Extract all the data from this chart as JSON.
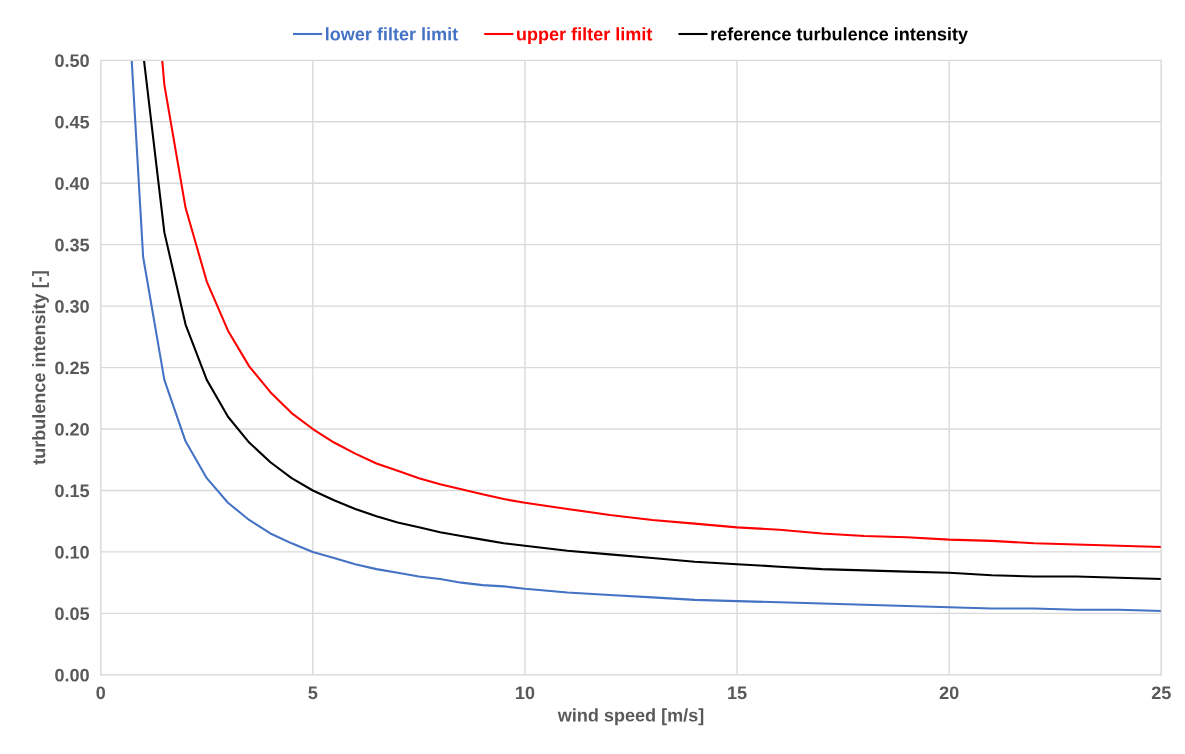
{
  "chart_data": {
    "type": "line",
    "xlabel": "wind speed [m/s]",
    "ylabel": "turbulence intensity [-]",
    "xlim": [
      0,
      25
    ],
    "xticks": [
      0,
      5,
      10,
      15,
      20,
      25
    ],
    "ylim": [
      0,
      0.5
    ],
    "yticks": [
      {
        "value": 0,
        "label": "0.00"
      },
      {
        "value": 0.05,
        "label": "0.05"
      },
      {
        "value": 0.1,
        "label": "0.10"
      },
      {
        "value": 0.15,
        "label": "0.15"
      },
      {
        "value": 0.2,
        "label": "0.20"
      },
      {
        "value": 0.25,
        "label": "0.25"
      },
      {
        "value": 0.3,
        "label": "0.30"
      },
      {
        "value": 0.35,
        "label": "0.35"
      },
      {
        "value": 0.4,
        "label": "0.40"
      },
      {
        "value": 0.45,
        "label": "0.45"
      },
      {
        "value": 0.5,
        "label": "0.50"
      }
    ],
    "grid": true,
    "legend": "top",
    "marker": "none",
    "line_style": "solid",
    "series": [
      {
        "name": "lower filter limit",
        "color": "#4472c4",
        "x": [
          0.73,
          1,
          1.5,
          2,
          2.5,
          3,
          3.5,
          4,
          4.5,
          5,
          5.5,
          6,
          6.5,
          7,
          7.5,
          8,
          8.5,
          9,
          9.5,
          10,
          11,
          12,
          13,
          14,
          15,
          16,
          17,
          18,
          19,
          20,
          21,
          22,
          23,
          24,
          25
        ],
        "values": [
          0.5,
          0.34,
          0.24,
          0.19,
          0.16,
          0.14,
          0.126,
          0.115,
          0.107,
          0.1,
          0.095,
          0.09,
          0.086,
          0.083,
          0.08,
          0.078,
          0.075,
          0.073,
          0.072,
          0.07,
          0.067,
          0.065,
          0.063,
          0.061,
          0.06,
          0.059,
          0.058,
          0.057,
          0.056,
          0.055,
          0.054,
          0.054,
          0.053,
          0.053,
          0.052
        ]
      },
      {
        "name": "upper filter limit",
        "color": "#ff0000",
        "x": [
          1.45,
          1.5,
          2,
          2.5,
          3,
          3.5,
          4,
          4.5,
          5,
          5.5,
          6,
          6.5,
          7,
          7.5,
          8,
          8.5,
          9,
          9.5,
          10,
          11,
          12,
          13,
          14,
          15,
          16,
          17,
          18,
          19,
          20,
          21,
          22,
          23,
          24,
          25
        ],
        "values": [
          0.5,
          0.48,
          0.38,
          0.32,
          0.28,
          0.251,
          0.23,
          0.213,
          0.2,
          0.189,
          0.18,
          0.172,
          0.166,
          0.16,
          0.155,
          0.151,
          0.147,
          0.143,
          0.14,
          0.135,
          0.13,
          0.126,
          0.123,
          0.12,
          0.118,
          0.115,
          0.113,
          0.112,
          0.11,
          0.109,
          0.107,
          0.106,
          0.105,
          0.104
        ]
      },
      {
        "name": "reference turbulence intensity",
        "color": "#000000",
        "x": [
          1.02,
          1.5,
          2,
          2.5,
          3,
          3.5,
          4,
          4.5,
          5,
          5.5,
          6,
          6.5,
          7,
          7.5,
          8,
          8.5,
          9,
          9.5,
          10,
          11,
          12,
          13,
          14,
          15,
          16,
          17,
          18,
          19,
          20,
          21,
          22,
          23,
          24,
          25
        ],
        "values": [
          0.5,
          0.36,
          0.285,
          0.24,
          0.21,
          0.189,
          0.173,
          0.16,
          0.15,
          0.142,
          0.135,
          0.129,
          0.124,
          0.12,
          0.116,
          0.113,
          0.11,
          0.107,
          0.105,
          0.101,
          0.098,
          0.095,
          0.092,
          0.09,
          0.088,
          0.086,
          0.085,
          0.084,
          0.083,
          0.081,
          0.08,
          0.08,
          0.079,
          0.078
        ]
      }
    ]
  }
}
